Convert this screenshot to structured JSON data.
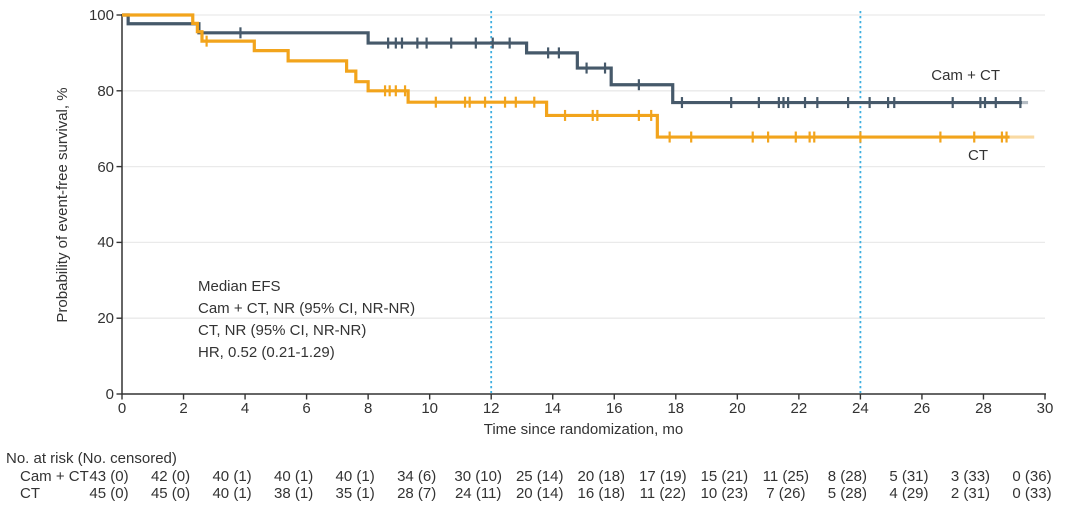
{
  "chart_data": {
    "type": "line",
    "subtype": "kaplan-meier-step",
    "title": "",
    "xlabel": "Time since randomization, mo",
    "ylabel": "Probability of event-free survival, %",
    "xlim": [
      0,
      30
    ],
    "ylim": [
      0,
      100
    ],
    "xticks": [
      0,
      2,
      4,
      6,
      8,
      10,
      12,
      14,
      16,
      18,
      20,
      22,
      24,
      26,
      28,
      30
    ],
    "yticks": [
      0,
      20,
      40,
      60,
      80,
      100
    ],
    "grid": "horizontal-light",
    "reference_lines_x": [
      12,
      24
    ],
    "legend_position": "curve-end-labels",
    "colors": {
      "cam_ct": "#46596A",
      "ct": "#F2A41C",
      "reference_line": "#3FAFE0",
      "gridline": "#EAEAEA",
      "axis": "#333333",
      "text": "#333333"
    },
    "series": [
      {
        "name": "Cam + CT",
        "color": "#46596A",
        "steps": [
          [
            0,
            100
          ],
          [
            0.2,
            97.7
          ],
          [
            2.5,
            95.3
          ],
          [
            8,
            92.6
          ],
          [
            13.15,
            90
          ],
          [
            14.8,
            86
          ],
          [
            15.9,
            81.6
          ],
          [
            17.9,
            76.9
          ]
        ],
        "fade_from": 29.25,
        "end": 29.45,
        "censors": [
          [
            3.85,
            95.3
          ],
          [
            8.65,
            92.6
          ],
          [
            8.9,
            92.6
          ],
          [
            9.1,
            92.6
          ],
          [
            9.6,
            92.6
          ],
          [
            9.9,
            92.6
          ],
          [
            10.7,
            92.6
          ],
          [
            11.5,
            92.6
          ],
          [
            12.05,
            92.6
          ],
          [
            12.6,
            92.6
          ],
          [
            13.85,
            90
          ],
          [
            14.2,
            90
          ],
          [
            15.1,
            86
          ],
          [
            15.7,
            86
          ],
          [
            16.8,
            81.6
          ],
          [
            18.2,
            76.9
          ],
          [
            19.8,
            76.9
          ],
          [
            20.7,
            76.9
          ],
          [
            21.35,
            76.9
          ],
          [
            21.5,
            76.9
          ],
          [
            21.65,
            76.9
          ],
          [
            22.2,
            76.9
          ],
          [
            22.6,
            76.9
          ],
          [
            23.6,
            76.9
          ],
          [
            24.3,
            76.9
          ],
          [
            24.9,
            76.9
          ],
          [
            25.1,
            76.9
          ],
          [
            27.0,
            76.9
          ],
          [
            27.9,
            76.9
          ],
          [
            28.05,
            76.9
          ],
          [
            28.4,
            76.9
          ],
          [
            29.2,
            76.9
          ]
        ]
      },
      {
        "name": "CT",
        "color": "#F2A41C",
        "steps": [
          [
            0,
            100
          ],
          [
            2.3,
            97.8
          ],
          [
            2.45,
            95.6
          ],
          [
            2.6,
            93.1
          ],
          [
            4.3,
            90.6
          ],
          [
            5.4,
            87.9
          ],
          [
            7.3,
            85.2
          ],
          [
            7.6,
            82.4
          ],
          [
            8,
            80
          ],
          [
            9.3,
            77
          ],
          [
            13.8,
            73.5
          ],
          [
            17.4,
            67.8
          ]
        ],
        "fade_from": 28.85,
        "end": 29.65,
        "censors": [
          [
            2.75,
            93.1
          ],
          [
            8.55,
            80
          ],
          [
            8.7,
            80
          ],
          [
            8.9,
            80
          ],
          [
            9.2,
            80
          ],
          [
            10.2,
            77
          ],
          [
            11.15,
            77
          ],
          [
            11.3,
            77
          ],
          [
            11.8,
            77
          ],
          [
            12.45,
            77
          ],
          [
            12.8,
            77
          ],
          [
            13.4,
            77
          ],
          [
            14.4,
            73.5
          ],
          [
            15.3,
            73.5
          ],
          [
            15.45,
            73.5
          ],
          [
            16.8,
            73.5
          ],
          [
            17.2,
            73.5
          ],
          [
            17.8,
            67.8
          ],
          [
            18.5,
            67.8
          ],
          [
            20.5,
            67.8
          ],
          [
            21.0,
            67.8
          ],
          [
            21.9,
            67.8
          ],
          [
            22.35,
            67.8
          ],
          [
            22.5,
            67.8
          ],
          [
            24.0,
            67.8
          ],
          [
            26.6,
            67.8
          ],
          [
            27.7,
            67.8
          ],
          [
            28.6,
            67.8
          ],
          [
            28.75,
            67.8
          ]
        ]
      }
    ],
    "annotations": [
      "Median EFS",
      "Cam + CT, NR (95% CI, NR-NR)",
      "CT, NR (95% CI, NR-NR)",
      "HR, 0.52 (0.21-1.29)"
    ],
    "risk_table": {
      "header": "No. at risk (No. censored)",
      "times": [
        0,
        2,
        4,
        6,
        8,
        10,
        12,
        14,
        16,
        18,
        20,
        22,
        24,
        26,
        28,
        30
      ],
      "rows": [
        {
          "label": "Cam + CT",
          "values": [
            "43 (0)",
            "42 (0)",
            "40 (1)",
            "40 (1)",
            "40 (1)",
            "34 (6)",
            "30 (10)",
            "25 (14)",
            "20 (18)",
            "17 (19)",
            "15 (21)",
            "11 (25)",
            "8 (28)",
            "5 (31)",
            "3 (33)",
            "0 (36)"
          ]
        },
        {
          "label": "CT",
          "values": [
            "45 (0)",
            "45 (0)",
            "40 (1)",
            "38 (1)",
            "35 (1)",
            "28 (7)",
            "24 (11)",
            "20 (14)",
            "16 (18)",
            "11 (22)",
            "10 (23)",
            "7 (26)",
            "5 (28)",
            "4 (29)",
            "2 (31)",
            "0 (33)"
          ]
        }
      ]
    }
  }
}
